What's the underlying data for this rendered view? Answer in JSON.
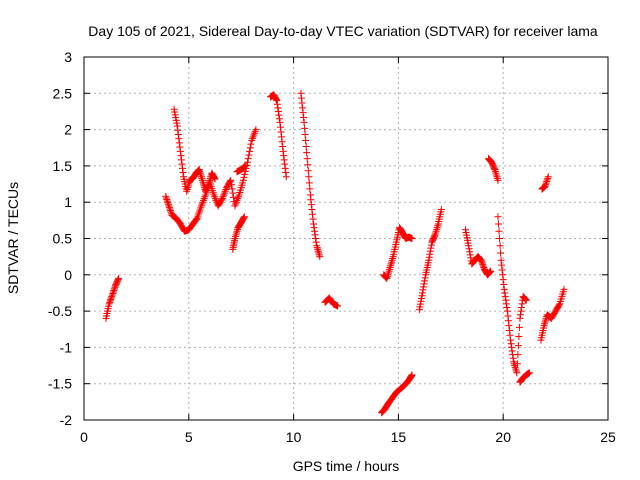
{
  "chart_data": {
    "type": "scatter",
    "title": "Day 105 of 2021, Sidereal Day-to-day VTEC variation (SDTVAR) for receiver lama",
    "xlabel": "GPS time / hours",
    "ylabel": "SDTVAR / TECUs",
    "xlim": [
      0,
      25
    ],
    "ylim": [
      -2,
      3
    ],
    "xticks": [
      "0",
      "5",
      "10",
      "15",
      "20",
      "25"
    ],
    "yticks": [
      "-2",
      "-1.5",
      "-1",
      "-0.5",
      "0",
      "0.5",
      "1",
      "1.5",
      "2",
      "2.5",
      "3"
    ],
    "grid": true,
    "marker": "plus",
    "color": "#ff0000",
    "segments": [
      {
        "x": [
          1.05,
          1.2,
          1.35,
          1.5,
          1.65
        ],
        "y": [
          -0.6,
          -0.4,
          -0.28,
          -0.15,
          -0.05
        ]
      },
      {
        "x": [
          3.9,
          4.05,
          4.2,
          4.4,
          4.6,
          4.8,
          5.0,
          5.2,
          5.4,
          5.6,
          5.8,
          6.0,
          6.2,
          6.4,
          6.6,
          6.8,
          7.0,
          7.2,
          7.4,
          7.6,
          7.8,
          8.0,
          8.2
        ],
        "y": [
          1.08,
          0.95,
          0.82,
          0.78,
          0.7,
          0.6,
          0.62,
          0.7,
          0.78,
          0.95,
          1.1,
          1.28,
          1.1,
          0.95,
          1.05,
          1.2,
          1.3,
          0.95,
          1.1,
          1.3,
          1.55,
          1.85,
          2.0
        ]
      },
      {
        "x": [
          4.3,
          4.45,
          4.6,
          4.75,
          4.9,
          5.05,
          5.2,
          5.35,
          5.5,
          5.65,
          5.8,
          5.95,
          6.1,
          6.25
        ],
        "y": [
          2.28,
          2.05,
          1.7,
          1.35,
          1.15,
          1.3,
          1.33,
          1.4,
          1.45,
          1.3,
          1.15,
          1.25,
          1.4,
          1.32
        ]
      },
      {
        "x": [
          7.1,
          7.2,
          7.35,
          7.5,
          7.65
        ],
        "y": [
          0.35,
          0.5,
          0.65,
          0.72,
          0.8
        ]
      },
      {
        "x": [
          7.3,
          7.5,
          7.7
        ],
        "y": [
          1.42,
          1.45,
          1.5
        ]
      },
      {
        "x": [
          8.9,
          9.05,
          9.2,
          9.35,
          9.5,
          9.65
        ],
        "y": [
          2.45,
          2.48,
          2.4,
          2.1,
          1.7,
          1.35
        ]
      },
      {
        "x": [
          10.35,
          10.5,
          10.65,
          10.8,
          10.95,
          11.1,
          11.25
        ],
        "y": [
          2.5,
          2.1,
          1.6,
          1.1,
          0.7,
          0.4,
          0.25
        ]
      },
      {
        "x": [
          11.5,
          11.7,
          11.9,
          12.1
        ],
        "y": [
          -0.38,
          -0.32,
          -0.4,
          -0.43
        ]
      },
      {
        "x": [
          14.2,
          14.35,
          14.5,
          14.7,
          14.9,
          15.1,
          15.3,
          15.5,
          15.65
        ],
        "y": [
          -1.9,
          -1.85,
          -1.78,
          -1.7,
          -1.62,
          -1.57,
          -1.52,
          -1.45,
          -1.38
        ]
      },
      {
        "x": [
          14.3,
          14.45,
          14.6,
          14.75,
          14.9,
          15.05,
          15.2,
          15.35,
          15.5,
          15.65
        ],
        "y": [
          0.0,
          -0.05,
          0.1,
          0.25,
          0.45,
          0.65,
          0.58,
          0.5,
          0.52,
          0.5
        ]
      },
      {
        "x": [
          16.0,
          16.15,
          16.3,
          16.45,
          16.6,
          16.75,
          16.9,
          17.05
        ],
        "y": [
          -0.48,
          -0.25,
          0.0,
          0.2,
          0.45,
          0.55,
          0.7,
          0.9
        ]
      },
      {
        "x": [
          18.2,
          18.35,
          18.5,
          18.65,
          18.8,
          18.95,
          19.1,
          19.25,
          19.4
        ],
        "y": [
          0.62,
          0.4,
          0.15,
          0.2,
          0.25,
          0.2,
          0.08,
          0.0,
          0.05
        ]
      },
      {
        "x": [
          19.3,
          19.45,
          19.6,
          19.75
        ],
        "y": [
          1.6,
          1.55,
          1.45,
          1.3
        ]
      },
      {
        "x": [
          19.75,
          19.9,
          20.05,
          20.2,
          20.35,
          20.5,
          20.65,
          20.8,
          20.95,
          21.1
        ],
        "y": [
          0.8,
          0.2,
          -0.2,
          -0.5,
          -0.9,
          -1.2,
          -1.35,
          -0.6,
          -0.3,
          -0.35
        ]
      },
      {
        "x": [
          20.8,
          20.95,
          21.1,
          21.25
        ],
        "y": [
          -1.48,
          -1.42,
          -1.38,
          -1.35
        ]
      },
      {
        "x": [
          21.8,
          21.95,
          22.1,
          22.3,
          22.5,
          22.7,
          22.9
        ],
        "y": [
          -0.9,
          -0.7,
          -0.55,
          -0.6,
          -0.5,
          -0.4,
          -0.2
        ]
      },
      {
        "x": [
          21.85,
          22.0,
          22.15
        ],
        "y": [
          1.18,
          1.22,
          1.35
        ]
      }
    ]
  }
}
